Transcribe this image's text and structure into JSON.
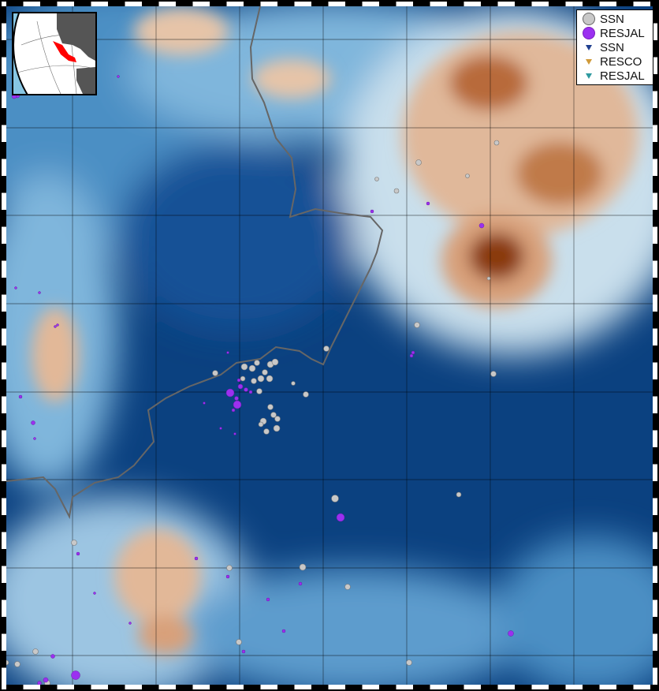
{
  "legend": {
    "items": [
      {
        "label": "SSN",
        "symbol": "circle",
        "color": "#c8c8c8"
      },
      {
        "label": "RESJAL",
        "symbol": "circle",
        "color": "#9b30f0"
      },
      {
        "label": "SSN",
        "symbol": "inverted-triangle",
        "color": "#1f3f8f"
      },
      {
        "label": "RESCO",
        "symbol": "inverted-triangle",
        "color": "#d09a3a"
      },
      {
        "label": "RESJAL",
        "symbol": "inverted-triangle",
        "color": "#2f9aa0"
      }
    ]
  },
  "colors": {
    "lowland": "#0a3f7a",
    "highland": "#8a3a10",
    "boundary": "#666666",
    "highlight_region": "#ff0000"
  },
  "inset": {
    "highlighted_region": "Mexico"
  }
}
